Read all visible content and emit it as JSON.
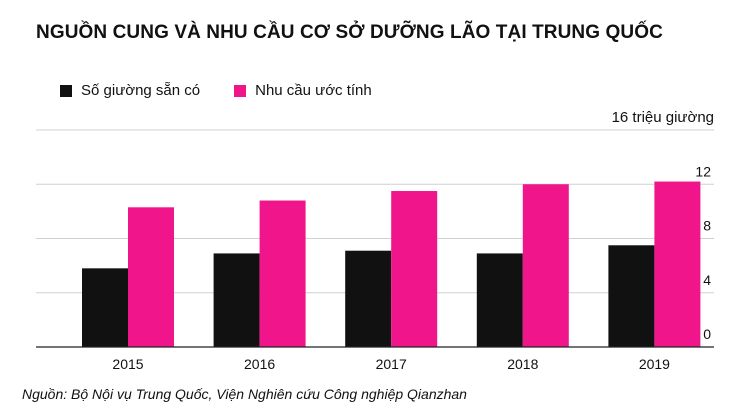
{
  "colors": {
    "available": "#111111",
    "demand": "#f0158b",
    "grid": "#d0d0d0",
    "axis": "#222222"
  },
  "chart_data": {
    "type": "bar",
    "title": "NGUỒN CUNG VÀ NHU CẦU CƠ SỞ DƯỠNG LÃO TẠI TRUNG QUỐC",
    "categories": [
      "2015",
      "2016",
      "2017",
      "2018",
      "2019"
    ],
    "series": [
      {
        "name": "Số giường sẵn có",
        "values": [
          5.8,
          6.9,
          7.1,
          6.9,
          7.5
        ]
      },
      {
        "name": "Nhu cầu ước tính",
        "values": [
          10.3,
          10.8,
          11.5,
          12.0,
          12.2
        ]
      }
    ],
    "y_ticks": [
      {
        "value": 0,
        "label": "0"
      },
      {
        "value": 4,
        "label": "4"
      },
      {
        "value": 8,
        "label": "8"
      },
      {
        "value": 12,
        "label": "12"
      },
      {
        "value": 16,
        "label": "16 triệu giường"
      }
    ],
    "ylim": [
      0,
      16
    ],
    "grid": true,
    "legend_position": "top-left",
    "source": "Nguồn: Bộ Nội vụ Trung Quốc, Viện Nghiên cứu Công nghiệp Qianzhan"
  }
}
